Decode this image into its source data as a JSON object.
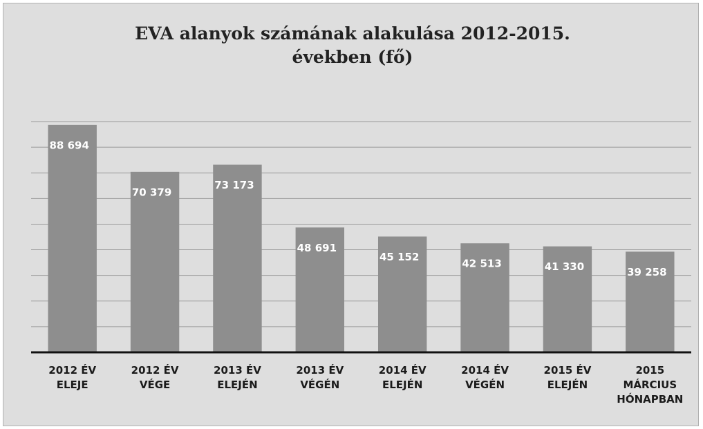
{
  "chart_data": {
    "type": "bar",
    "title": "EVA alanyok számának alakulása 2012-2015. években (fő)",
    "categories": [
      "2012 ÉV ELEJE",
      "2012 ÉV VÉGE",
      "2013 ÉV ELEJÉN",
      "2013 ÉV VÉGÉN",
      "2014 ÉV ELEJÉN",
      "2014 ÉV VÉGÉN",
      "2015 ÉV ELEJÉN",
      "2015 MÁRCIUS HÓNAPBAN"
    ],
    "values": [
      88694,
      70379,
      73173,
      48691,
      45152,
      42513,
      41330,
      39258
    ],
    "value_labels": [
      "88 694",
      "70 379",
      "73 173",
      "48 691",
      "45 152",
      "42 513",
      "41 330",
      "39 258"
    ],
    "color": "#8e8e8e",
    "ylim": [
      0,
      90000
    ],
    "yticks": [
      0,
      10000,
      20000,
      30000,
      40000,
      50000,
      60000,
      70000,
      80000,
      90000
    ],
    "grid": true
  }
}
